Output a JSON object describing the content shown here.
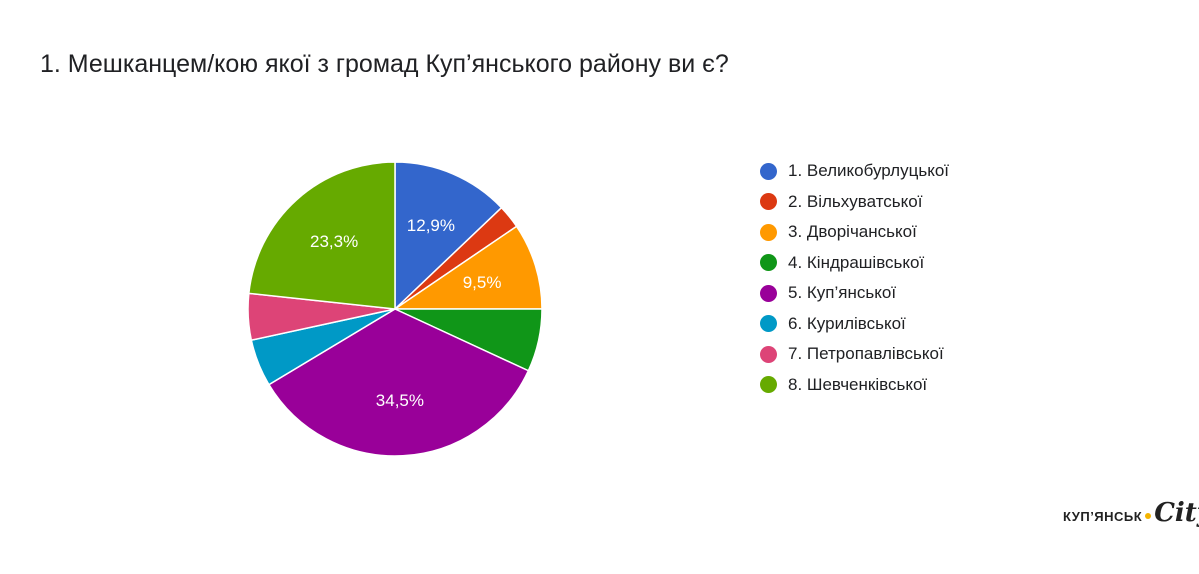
{
  "question_title": "1. Мешканцем/кою якої з громад Куп’янського району ви є?",
  "chart_data": {
    "type": "pie",
    "title": "1. Мешканцем/кою якої з громад Куп’янського району ви є?",
    "legend_position": "right",
    "slices": [
      {
        "label": "1. Великобурлуцької",
        "value": 12.9,
        "color": "#3366cc",
        "shown_label": "12,9%"
      },
      {
        "label": "2. Вільхуватської",
        "value": 2.6,
        "color": "#dc3912",
        "shown_label": ""
      },
      {
        "label": "3. Дворічанської",
        "value": 9.5,
        "color": "#ff9900",
        "shown_label": "9,5%"
      },
      {
        "label": "4. Кіндрашівської",
        "value": 6.9,
        "color": "#109618",
        "shown_label": ""
      },
      {
        "label": "5. Куп’янської",
        "value": 34.5,
        "color": "#990099",
        "shown_label": "34,5%"
      },
      {
        "label": "6. Курилівської",
        "value": 5.2,
        "color": "#0099c6",
        "shown_label": ""
      },
      {
        "label": "7. Петропавлівської",
        "value": 5.1,
        "color": "#dd4477",
        "shown_label": ""
      },
      {
        "label": "8. Шевченківської",
        "value": 23.3,
        "color": "#66aa00",
        "shown_label": "23,3%"
      }
    ]
  },
  "logo": {
    "city_name": "КУП’ЯНСЬК",
    "city_word": "City",
    "dot_color": "#f4b400"
  }
}
